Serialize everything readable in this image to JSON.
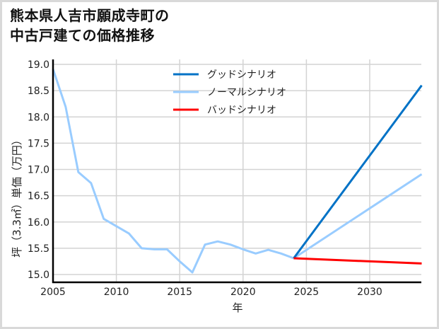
{
  "title": {
    "line1": "熊本県人吉市願成寺町の",
    "line2": "中古戸建ての価格推移"
  },
  "colors": {
    "good": "#0072C6",
    "normal": "#99CCFF",
    "bad": "#FF0000",
    "grid": "#d3d3d3",
    "axis": "#000000",
    "frame": "#d9d9d9",
    "text": "#222222"
  },
  "chart_data": {
    "type": "line",
    "title": "熊本県人吉市願成寺町の中古戸建ての価格推移",
    "xlabel": "年",
    "ylabel": "坪（3.3㎡）単価（万円）",
    "xlim": [
      2005,
      2034.1
    ],
    "ylim": [
      14.85,
      19.1
    ],
    "grid": true,
    "legend_position": "upper center",
    "x_ticks": [
      2005,
      2010,
      2015,
      2020,
      2025,
      2030
    ],
    "x_tick_labels": [
      "2005",
      "2010",
      "2015",
      "2020",
      "2025",
      "2030"
    ],
    "y_ticks": [
      15.0,
      15.5,
      16.0,
      16.5,
      17.0,
      17.5,
      18.0,
      18.5,
      19.0
    ],
    "y_tick_labels": [
      "15.0",
      "15.5",
      "16.0",
      "16.5",
      "17.0",
      "17.5",
      "18.0",
      "18.5",
      "19.0"
    ],
    "legend": [
      "グッドシナリオ",
      "ノーマルシナリオ",
      "バッドシナリオ"
    ],
    "series": [
      {
        "name": "ノーマルシナリオ",
        "color": "#99CCFF",
        "x": [
          2005,
          2006,
          2007,
          2008,
          2009,
          2010,
          2011,
          2012,
          2013,
          2014,
          2015,
          2016,
          2017,
          2018,
          2019,
          2020,
          2021,
          2022,
          2023,
          2024,
          2034.1
        ],
        "y": [
          18.91,
          18.19,
          16.95,
          16.74,
          16.06,
          15.92,
          15.78,
          15.5,
          15.48,
          15.48,
          15.25,
          15.04,
          15.57,
          15.63,
          15.57,
          15.48,
          15.4,
          15.47,
          15.4,
          15.31,
          16.91
        ]
      },
      {
        "name": "グッドシナリオ",
        "color": "#0072C6",
        "x": [
          2024,
          2034.1
        ],
        "y": [
          15.31,
          18.6
        ]
      },
      {
        "name": "バッドシナリオ",
        "color": "#FF0000",
        "x": [
          2024,
          2034.1
        ],
        "y": [
          15.31,
          15.21
        ]
      }
    ]
  }
}
